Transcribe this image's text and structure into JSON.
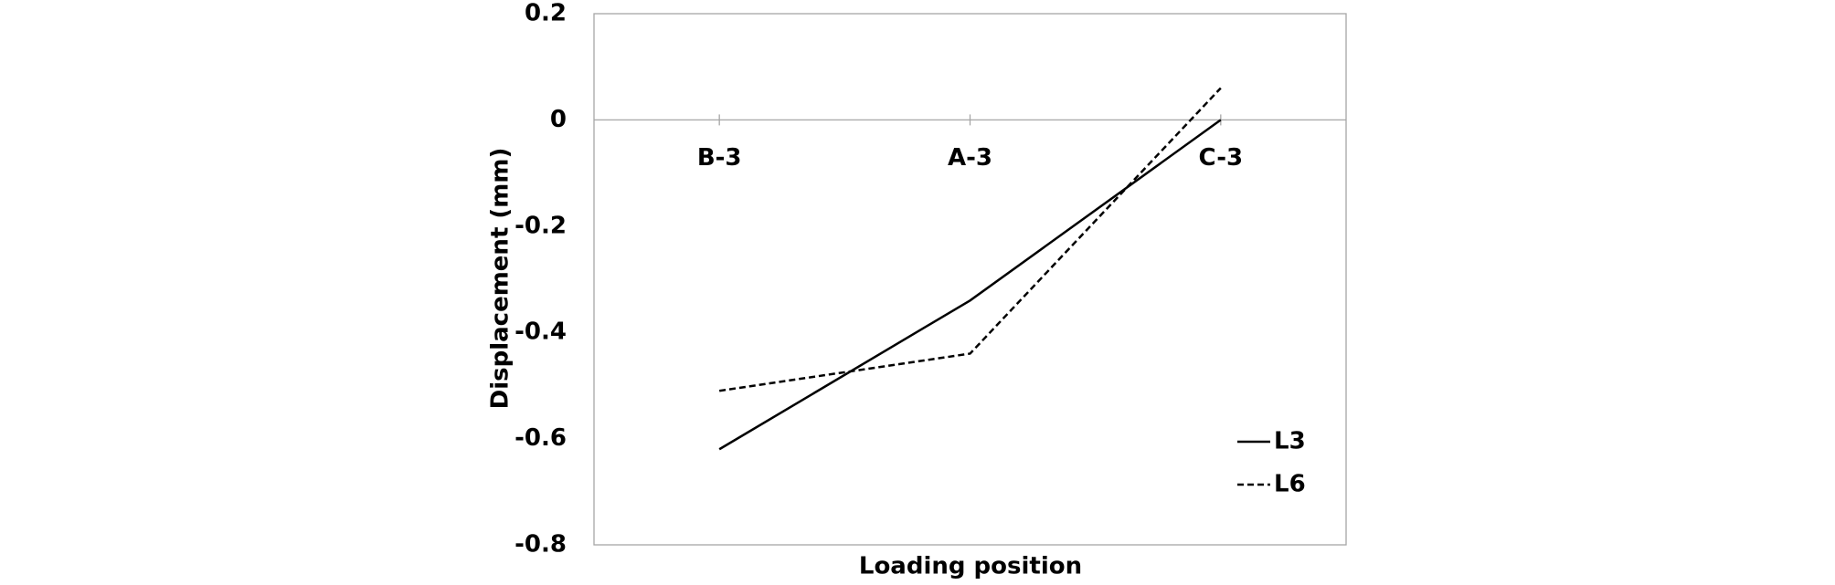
{
  "chart_data": {
    "type": "line",
    "x_label": "Loading position",
    "y_label": "Displacement (mm)",
    "categories": [
      "B-3",
      "A-3",
      "C-3"
    ],
    "series": [
      {
        "name": "L3",
        "color": "#000000",
        "line_style": "solid",
        "values": [
          -0.62,
          -0.34,
          0.0
        ]
      },
      {
        "name": "L6",
        "color": "#000000",
        "line_style": "dashed",
        "values": [
          -0.51,
          -0.44,
          0.06
        ]
      }
    ],
    "ylim": [
      -0.8,
      0.2
    ],
    "yticks": [
      0.2,
      0,
      -0.2,
      -0.4,
      -0.6,
      -0.8
    ],
    "grid": false,
    "legend": "lower right"
  }
}
